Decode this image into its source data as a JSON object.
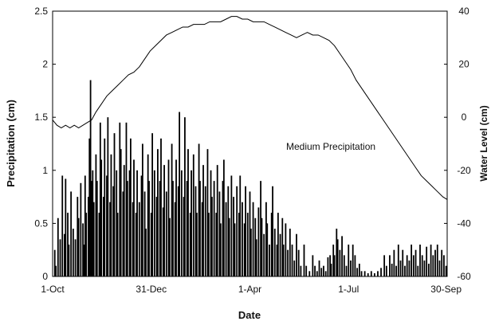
{
  "chart_data": {
    "type": "bar+line",
    "annotation": "Medium Precipitation",
    "xlabel": "Date",
    "ylabel_left": "Precipitation (cm)",
    "ylabel_right": "Water Level (cm)",
    "x_ticks": [
      "1-Oct",
      "31-Dec",
      "1-Apr",
      "1-Jul",
      "30-Sep"
    ],
    "x_tick_days": [
      0,
      91,
      182,
      273,
      364
    ],
    "y_left": {
      "lim": [
        0,
        2.5
      ],
      "ticks": [
        "0",
        "0.5",
        "1",
        "1.5",
        "2",
        "2.5"
      ]
    },
    "y_right": {
      "lim": [
        -60,
        40
      ],
      "ticks": [
        "-60",
        "-40",
        "-20",
        "0",
        "20",
        "40"
      ]
    },
    "grid": false,
    "series": [
      {
        "type": "bar",
        "axis": "left",
        "x_unit": "day since 1-Oct",
        "points": [
          [
            2,
            0.25
          ],
          [
            3,
            0.1
          ],
          [
            5,
            0.55
          ],
          [
            7,
            0.35
          ],
          [
            9,
            0.95
          ],
          [
            11,
            0.4
          ],
          [
            12,
            0.92
          ],
          [
            14,
            0.6
          ],
          [
            15,
            0.3
          ],
          [
            17,
            0.8
          ],
          [
            19,
            0.45
          ],
          [
            21,
            0.35
          ],
          [
            23,
            0.75
          ],
          [
            24,
            0.55
          ],
          [
            26,
            0.88
          ],
          [
            28,
            0.5
          ],
          [
            29,
            0.3
          ],
          [
            30,
            0.95
          ],
          [
            31,
            0.6
          ],
          [
            33,
            0.75
          ],
          [
            34,
            1.3
          ],
          [
            35,
            1.85
          ],
          [
            36,
            0.9
          ],
          [
            37,
            1.0
          ],
          [
            38,
            0.7
          ],
          [
            40,
            1.15
          ],
          [
            41,
            0.9
          ],
          [
            43,
            0.6
          ],
          [
            44,
            1.45
          ],
          [
            45,
            1.1
          ],
          [
            47,
            0.75
          ],
          [
            48,
            1.3
          ],
          [
            50,
            0.95
          ],
          [
            51,
            1.5
          ],
          [
            53,
            0.7
          ],
          [
            54,
            1.15
          ],
          [
            56,
            0.85
          ],
          [
            57,
            1.35
          ],
          [
            59,
            1.0
          ],
          [
            60,
            0.6
          ],
          [
            62,
            1.45
          ],
          [
            63,
            1.2
          ],
          [
            65,
            0.8
          ],
          [
            66,
            1.05
          ],
          [
            68,
            1.45
          ],
          [
            69,
            0.9
          ],
          [
            71,
            1.0
          ],
          [
            72,
            1.3
          ],
          [
            74,
            0.7
          ],
          [
            75,
            1.1
          ],
          [
            77,
            0.6
          ],
          [
            78,
            1.0
          ],
          [
            80,
            0.7
          ],
          [
            82,
            0.95
          ],
          [
            83,
            1.25
          ],
          [
            85,
            0.8
          ],
          [
            86,
            0.45
          ],
          [
            88,
            1.15
          ],
          [
            89,
            0.9
          ],
          [
            91,
            0.6
          ],
          [
            92,
            1.35
          ],
          [
            94,
            1.0
          ],
          [
            96,
            0.75
          ],
          [
            97,
            1.2
          ],
          [
            99,
            0.9
          ],
          [
            100,
            1.3
          ],
          [
            102,
            0.65
          ],
          [
            103,
            1.05
          ],
          [
            105,
            0.8
          ],
          [
            107,
            1.1
          ],
          [
            108,
            0.55
          ],
          [
            110,
            1.25
          ],
          [
            111,
            0.9
          ],
          [
            113,
            0.7
          ],
          [
            114,
            1.1
          ],
          [
            116,
            0.85
          ],
          [
            117,
            1.55
          ],
          [
            119,
            1.0
          ],
          [
            121,
            0.75
          ],
          [
            122,
            1.5
          ],
          [
            124,
            0.9
          ],
          [
            125,
            1.2
          ],
          [
            127,
            0.6
          ],
          [
            128,
            1.0
          ],
          [
            130,
            1.15
          ],
          [
            132,
            0.85
          ],
          [
            133,
            0.6
          ],
          [
            135,
            1.25
          ],
          [
            136,
            0.9
          ],
          [
            138,
            0.7
          ],
          [
            139,
            1.05
          ],
          [
            141,
            0.85
          ],
          [
            143,
            1.2
          ],
          [
            144,
            0.6
          ],
          [
            146,
            1.0
          ],
          [
            147,
            0.75
          ],
          [
            149,
            0.9
          ],
          [
            151,
            0.6
          ],
          [
            152,
            1.05
          ],
          [
            154,
            0.8
          ],
          [
            155,
            0.5
          ],
          [
            157,
            0.9
          ],
          [
            158,
            1.1
          ],
          [
            160,
            0.7
          ],
          [
            162,
            0.85
          ],
          [
            163,
            0.55
          ],
          [
            165,
            0.95
          ],
          [
            167,
            0.75
          ],
          [
            168,
            0.5
          ],
          [
            170,
            0.85
          ],
          [
            172,
            0.6
          ],
          [
            173,
            0.95
          ],
          [
            175,
            0.7
          ],
          [
            177,
            0.5
          ],
          [
            178,
            0.85
          ],
          [
            180,
            0.6
          ],
          [
            182,
            0.8
          ],
          [
            183,
            0.45
          ],
          [
            185,
            0.7
          ],
          [
            187,
            0.55
          ],
          [
            188,
            0.35
          ],
          [
            190,
            0.65
          ],
          [
            192,
            0.9
          ],
          [
            193,
            0.55
          ],
          [
            195,
            0.4
          ],
          [
            197,
            0.7
          ],
          [
            198,
            0.5
          ],
          [
            200,
            0.3
          ],
          [
            202,
            0.6
          ],
          [
            203,
            0.85
          ],
          [
            205,
            0.45
          ],
          [
            207,
            0.3
          ],
          [
            208,
            0.6
          ],
          [
            210,
            0.4
          ],
          [
            212,
            0.55
          ],
          [
            213,
            0.3
          ],
          [
            215,
            0.5
          ],
          [
            217,
            0.25
          ],
          [
            219,
            0.45
          ],
          [
            221,
            0.3
          ],
          [
            223,
            0.15
          ],
          [
            225,
            0.4
          ],
          [
            227,
            0.25
          ],
          [
            229,
            0.1
          ],
          [
            232,
            0.3
          ],
          [
            234,
            0.1
          ],
          [
            237,
            0.05
          ],
          [
            240,
            0.2
          ],
          [
            242,
            0.1
          ],
          [
            244,
            0.05
          ],
          [
            246,
            0.15
          ],
          [
            248,
            0.08
          ],
          [
            250,
            0.1
          ],
          [
            252,
            0.05
          ],
          [
            254,
            0.18
          ],
          [
            256,
            0.2
          ],
          [
            257,
            0.12
          ],
          [
            259,
            0.3
          ],
          [
            260,
            0.2
          ],
          [
            262,
            0.45
          ],
          [
            263,
            0.35
          ],
          [
            265,
            0.25
          ],
          [
            267,
            0.38
          ],
          [
            269,
            0.2
          ],
          [
            271,
            0.1
          ],
          [
            273,
            0.3
          ],
          [
            275,
            0.15
          ],
          [
            277,
            0.3
          ],
          [
            279,
            0.2
          ],
          [
            281,
            0.08
          ],
          [
            283,
            0.12
          ],
          [
            285,
            0.05
          ],
          [
            288,
            0.05
          ],
          [
            291,
            0.03
          ],
          [
            294,
            0.05
          ],
          [
            297,
            0.03
          ],
          [
            300,
            0.05
          ],
          [
            303,
            0.08
          ],
          [
            306,
            0.2
          ],
          [
            308,
            0.1
          ],
          [
            311,
            0.2
          ],
          [
            313,
            0.12
          ],
          [
            315,
            0.25
          ],
          [
            317,
            0.1
          ],
          [
            319,
            0.3
          ],
          [
            321,
            0.15
          ],
          [
            323,
            0.25
          ],
          [
            325,
            0.1
          ],
          [
            327,
            0.2
          ],
          [
            329,
            0.15
          ],
          [
            331,
            0.3
          ],
          [
            333,
            0.2
          ],
          [
            335,
            0.25
          ],
          [
            337,
            0.1
          ],
          [
            339,
            0.3
          ],
          [
            341,
            0.2
          ],
          [
            343,
            0.15
          ],
          [
            345,
            0.28
          ],
          [
            347,
            0.12
          ],
          [
            349,
            0.3
          ],
          [
            351,
            0.2
          ],
          [
            353,
            0.25
          ],
          [
            355,
            0.3
          ],
          [
            357,
            0.15
          ],
          [
            359,
            0.25
          ],
          [
            361,
            0.2
          ],
          [
            363,
            0.1
          ]
        ]
      },
      {
        "type": "line",
        "axis": "right",
        "x_unit": "day since 1-Oct",
        "points": [
          [
            0,
            -1
          ],
          [
            4,
            -3
          ],
          [
            8,
            -4
          ],
          [
            12,
            -3
          ],
          [
            16,
            -4
          ],
          [
            20,
            -3
          ],
          [
            24,
            -4
          ],
          [
            28,
            -3
          ],
          [
            32,
            -2
          ],
          [
            36,
            -1
          ],
          [
            40,
            2
          ],
          [
            45,
            5
          ],
          [
            50,
            8
          ],
          [
            55,
            10
          ],
          [
            60,
            12
          ],
          [
            65,
            14
          ],
          [
            70,
            16
          ],
          [
            75,
            17
          ],
          [
            80,
            19
          ],
          [
            85,
            22
          ],
          [
            90,
            25
          ],
          [
            95,
            27
          ],
          [
            100,
            29
          ],
          [
            105,
            31
          ],
          [
            110,
            32
          ],
          [
            115,
            33
          ],
          [
            120,
            34
          ],
          [
            125,
            34
          ],
          [
            130,
            35
          ],
          [
            135,
            35
          ],
          [
            140,
            35
          ],
          [
            145,
            36
          ],
          [
            150,
            36
          ],
          [
            155,
            36
          ],
          [
            160,
            37
          ],
          [
            165,
            38
          ],
          [
            170,
            38
          ],
          [
            175,
            37
          ],
          [
            180,
            37
          ],
          [
            185,
            36
          ],
          [
            190,
            36
          ],
          [
            195,
            36
          ],
          [
            200,
            35
          ],
          [
            205,
            34
          ],
          [
            210,
            33
          ],
          [
            215,
            32
          ],
          [
            220,
            31
          ],
          [
            225,
            30
          ],
          [
            230,
            31
          ],
          [
            235,
            32
          ],
          [
            240,
            31
          ],
          [
            245,
            31
          ],
          [
            250,
            30
          ],
          [
            255,
            29
          ],
          [
            260,
            27
          ],
          [
            265,
            24
          ],
          [
            270,
            21
          ],
          [
            275,
            18
          ],
          [
            280,
            14
          ],
          [
            285,
            11
          ],
          [
            290,
            8
          ],
          [
            295,
            5
          ],
          [
            300,
            2
          ],
          [
            305,
            -1
          ],
          [
            310,
            -4
          ],
          [
            315,
            -7
          ],
          [
            320,
            -10
          ],
          [
            325,
            -13
          ],
          [
            330,
            -16
          ],
          [
            335,
            -19
          ],
          [
            340,
            -22
          ],
          [
            345,
            -24
          ],
          [
            350,
            -26
          ],
          [
            355,
            -28
          ],
          [
            360,
            -30
          ],
          [
            364,
            -31
          ]
        ]
      }
    ]
  }
}
